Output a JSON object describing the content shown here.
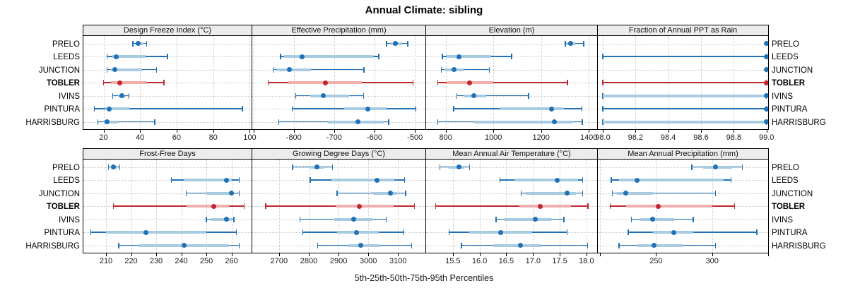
{
  "title": "Annual Climate: sibling",
  "caption": "5th-25th-50th-75th-95th Percentiles",
  "locations": [
    "PRELO",
    "LEEDS",
    "JUNCTION",
    "TOBLER",
    "IVINS",
    "PINTURA",
    "HARRISBURG"
  ],
  "highlight_location": "TOBLER",
  "colors": {
    "series_blue": "#2171B5",
    "series_blue_light": "#A8CBE2",
    "highlight_red": "#C0282D",
    "highlight_red_light": "#F2AEAA",
    "grid": "#C9C9C9",
    "header_bg": "#ECECEC",
    "panel_border": "#000000"
  },
  "percentile_labels": [
    "5th",
    "25th",
    "50th",
    "75th",
    "95th"
  ],
  "chart_data": [
    {
      "type": "dot-interval",
      "title": "Design Freeze Index (°C)",
      "xlim": [
        9,
        101
      ],
      "ticks": {
        "values": [
          20,
          40,
          60,
          80,
          100
        ],
        "labels": [
          "20",
          "40",
          "60",
          "80",
          "100"
        ]
      },
      "minor_ticks": [],
      "series": [
        {
          "name": "PRELO",
          "values": [
            36,
            37.5,
            39,
            42,
            43.5
          ]
        },
        {
          "name": "LEEDS",
          "values": [
            22,
            25,
            27,
            43,
            55
          ]
        },
        {
          "name": "JUNCTION",
          "values": [
            22,
            24,
            26,
            41,
            49
          ]
        },
        {
          "name": "TOBLER",
          "values": [
            20,
            24,
            29,
            44,
            53
          ]
        },
        {
          "name": "IVINS",
          "values": [
            25,
            28,
            30,
            32,
            34
          ]
        },
        {
          "name": "PINTURA",
          "values": [
            15,
            21,
            23,
            34,
            96
          ]
        },
        {
          "name": "HARRISBURG",
          "values": [
            17,
            20,
            22,
            28,
            48
          ]
        }
      ]
    },
    {
      "type": "dot-interval",
      "title": "Effective Precipitation (mm)",
      "xlim": [
        -903,
        -474
      ],
      "ticks": {
        "values": [
          -800,
          -700,
          -600,
          -500
        ],
        "labels": [
          "-800",
          "-700",
          "-600",
          "-500"
        ]
      },
      "minor_ticks": [
        -900
      ],
      "series": [
        {
          "name": "PRELO",
          "values": [
            -570,
            -560,
            -549,
            -532,
            -518
          ]
        },
        {
          "name": "LEEDS",
          "values": [
            -833,
            -825,
            -780,
            -603,
            -590
          ]
        },
        {
          "name": "JUNCTION",
          "values": [
            -850,
            -843,
            -812,
            -757,
            -626
          ]
        },
        {
          "name": "TOBLER",
          "values": [
            -864,
            -814,
            -722,
            -631,
            -505
          ]
        },
        {
          "name": "IVINS",
          "values": [
            -795,
            -760,
            -727,
            -663,
            -627
          ]
        },
        {
          "name": "PINTURA",
          "values": [
            -804,
            -675,
            -616,
            -571,
            -498
          ]
        },
        {
          "name": "HARRISBURG",
          "values": [
            -837,
            -715,
            -641,
            -577,
            -565
          ]
        }
      ]
    },
    {
      "type": "dot-interval",
      "title": "Elevation (m)",
      "xlim": [
        718,
        1435
      ],
      "ticks": {
        "values": [
          800,
          1000,
          1200,
          1400
        ],
        "labels": [
          "800",
          "1000",
          "1200",
          "1400"
        ]
      },
      "minor_ticks": [],
      "series": [
        {
          "name": "PRELO",
          "values": [
            1301,
            1308,
            1324,
            1344,
            1379
          ]
        },
        {
          "name": "LEEDS",
          "values": [
            786,
            805,
            857,
            990,
            1076
          ]
        },
        {
          "name": "JUNCTION",
          "values": [
            782,
            796,
            836,
            876,
            983
          ]
        },
        {
          "name": "TOBLER",
          "values": [
            767,
            803,
            900,
            1000,
            1310
          ]
        },
        {
          "name": "IVINS",
          "values": [
            846,
            876,
            919,
            971,
            1147
          ]
        },
        {
          "name": "PINTURA",
          "values": [
            833,
            1027,
            1243,
            1296,
            1371
          ]
        },
        {
          "name": "HARRISBURG",
          "values": [
            767,
            920,
            1255,
            1333,
            1373
          ]
        }
      ]
    },
    {
      "type": "dot-interval",
      "title": "Fraction of Annual PPT as Rain",
      "xlim": [
        97.97,
        99.01
      ],
      "ticks": {
        "values": [
          98.0,
          98.2,
          98.4,
          98.6,
          98.8,
          99.0
        ],
        "labels": [
          "98.0",
          "98.2",
          "98.4",
          "98.6",
          "98.8",
          "99.0"
        ]
      },
      "minor_ticks": [],
      "series": [
        {
          "name": "PRELO",
          "values": [
            99,
            99,
            99,
            99,
            99
          ]
        },
        {
          "name": "LEEDS",
          "values": [
            98,
            99,
            99,
            99,
            99
          ]
        },
        {
          "name": "JUNCTION",
          "values": [
            99,
            99,
            99,
            99,
            99
          ]
        },
        {
          "name": "TOBLER",
          "values": [
            98,
            99,
            99,
            99,
            99
          ]
        },
        {
          "name": "IVINS",
          "values": [
            98,
            98,
            99,
            99,
            99
          ]
        },
        {
          "name": "PINTURA",
          "values": [
            98,
            99,
            99,
            99,
            99
          ]
        },
        {
          "name": "HARRISBURG",
          "values": [
            98,
            98,
            99,
            99,
            99
          ]
        }
      ]
    },
    {
      "type": "dot-interval",
      "title": "Frost-Free Days",
      "xlim": [
        201,
        268
      ],
      "ticks": {
        "values": [
          210,
          220,
          230,
          240,
          250,
          260
        ],
        "labels": [
          "210",
          "220",
          "230",
          "240",
          "250",
          "260"
        ]
      },
      "minor_ticks": [],
      "series": [
        {
          "name": "PRELO",
          "values": [
            211,
            212,
            213,
            214.5,
            215.5
          ]
        },
        {
          "name": "LEEDS",
          "values": [
            236,
            241,
            258,
            260,
            263
          ]
        },
        {
          "name": "JUNCTION",
          "values": [
            242,
            250,
            260,
            261,
            263
          ]
        },
        {
          "name": "TOBLER",
          "values": [
            213,
            242,
            253,
            259,
            265
          ]
        },
        {
          "name": "IVINS",
          "values": [
            250,
            252,
            258,
            260,
            261
          ]
        },
        {
          "name": "PINTURA",
          "values": [
            204,
            210,
            226,
            250,
            262
          ]
        },
        {
          "name": "HARRISBURG",
          "values": [
            215,
            223,
            241,
            259,
            263
          ]
        }
      ]
    },
    {
      "type": "dot-interval",
      "title": "Growing Degree Days (°C)",
      "xlim": [
        2610,
        3192
      ],
      "ticks": {
        "values": [
          2700,
          2800,
          2900,
          3000,
          3100
        ],
        "labels": [
          "2700",
          "2800",
          "2900",
          "3000",
          "3100"
        ]
      },
      "minor_ticks": [],
      "series": [
        {
          "name": "PRELO",
          "values": [
            2745,
            2805,
            2828,
            2852,
            2880
          ]
        },
        {
          "name": "LEEDS",
          "values": [
            2805,
            2875,
            3030,
            3088,
            3122
          ]
        },
        {
          "name": "JUNCTION",
          "values": [
            2895,
            3015,
            3075,
            3095,
            3125
          ]
        },
        {
          "name": "TOBLER",
          "values": [
            2655,
            2890,
            2970,
            3085,
            3155
          ]
        },
        {
          "name": "IVINS",
          "values": [
            2770,
            2885,
            2950,
            3015,
            3060
          ]
        },
        {
          "name": "PINTURA",
          "values": [
            2780,
            2895,
            2960,
            3035,
            3120
          ]
        },
        {
          "name": "HARRISBURG",
          "values": [
            2830,
            2930,
            2975,
            3040,
            3145
          ]
        }
      ]
    },
    {
      "type": "dot-interval",
      "title": "Mean Annual Air Temperature (°C)",
      "xlim": [
        15.0,
        18.2
      ],
      "ticks": {
        "values": [
          15.5,
          16.0,
          16.5,
          17.0,
          17.5,
          18.0
        ],
        "labels": [
          "15.5",
          "16.0",
          "16.5",
          "17.0",
          "17.5",
          "18.0"
        ]
      },
      "minor_ticks": [],
      "series": [
        {
          "name": "PRELO",
          "values": [
            15.26,
            15.42,
            15.62,
            15.71,
            15.81
          ]
        },
        {
          "name": "LEEDS",
          "values": [
            16.38,
            16.65,
            17.45,
            17.84,
            17.93
          ]
        },
        {
          "name": "JUNCTION",
          "values": [
            16.78,
            16.86,
            17.64,
            17.81,
            17.93
          ]
        },
        {
          "name": "TOBLER",
          "values": [
            15.18,
            16.74,
            17.14,
            17.71,
            18.03
          ]
        },
        {
          "name": "IVINS",
          "values": [
            16.31,
            16.46,
            17.04,
            17.34,
            17.58
          ]
        },
        {
          "name": "PINTURA",
          "values": [
            15.43,
            15.81,
            16.4,
            16.98,
            17.64
          ]
        },
        {
          "name": "HARRISBURG",
          "values": [
            15.66,
            16.26,
            16.76,
            17.15,
            18.02
          ]
        }
      ]
    },
    {
      "type": "dot-interval",
      "title": "Mean Annual Precipitation (mm)",
      "xlim": [
        198,
        350
      ],
      "ticks": {
        "values": [
          250,
          300
        ],
        "labels": [
          "250",
          "300"
        ]
      },
      "minor_ticks": [
        200,
        350
      ],
      "series": [
        {
          "name": "PRELO",
          "values": [
            282,
            292,
            303,
            318,
            327
          ]
        },
        {
          "name": "LEEDS",
          "values": [
            210,
            217,
            233,
            310,
            317
          ]
        },
        {
          "name": "JUNCTION",
          "values": [
            211,
            215,
            223,
            247,
            303
          ]
        },
        {
          "name": "TOBLER",
          "values": [
            209,
            223,
            252,
            300,
            320
          ]
        },
        {
          "name": "IVINS",
          "values": [
            228,
            235,
            247,
            266,
            283
          ]
        },
        {
          "name": "PINTURA",
          "values": [
            225,
            247,
            266,
            283,
            340
          ]
        },
        {
          "name": "HARRISBURG",
          "values": [
            217,
            233,
            248,
            274,
            303
          ]
        }
      ]
    }
  ]
}
